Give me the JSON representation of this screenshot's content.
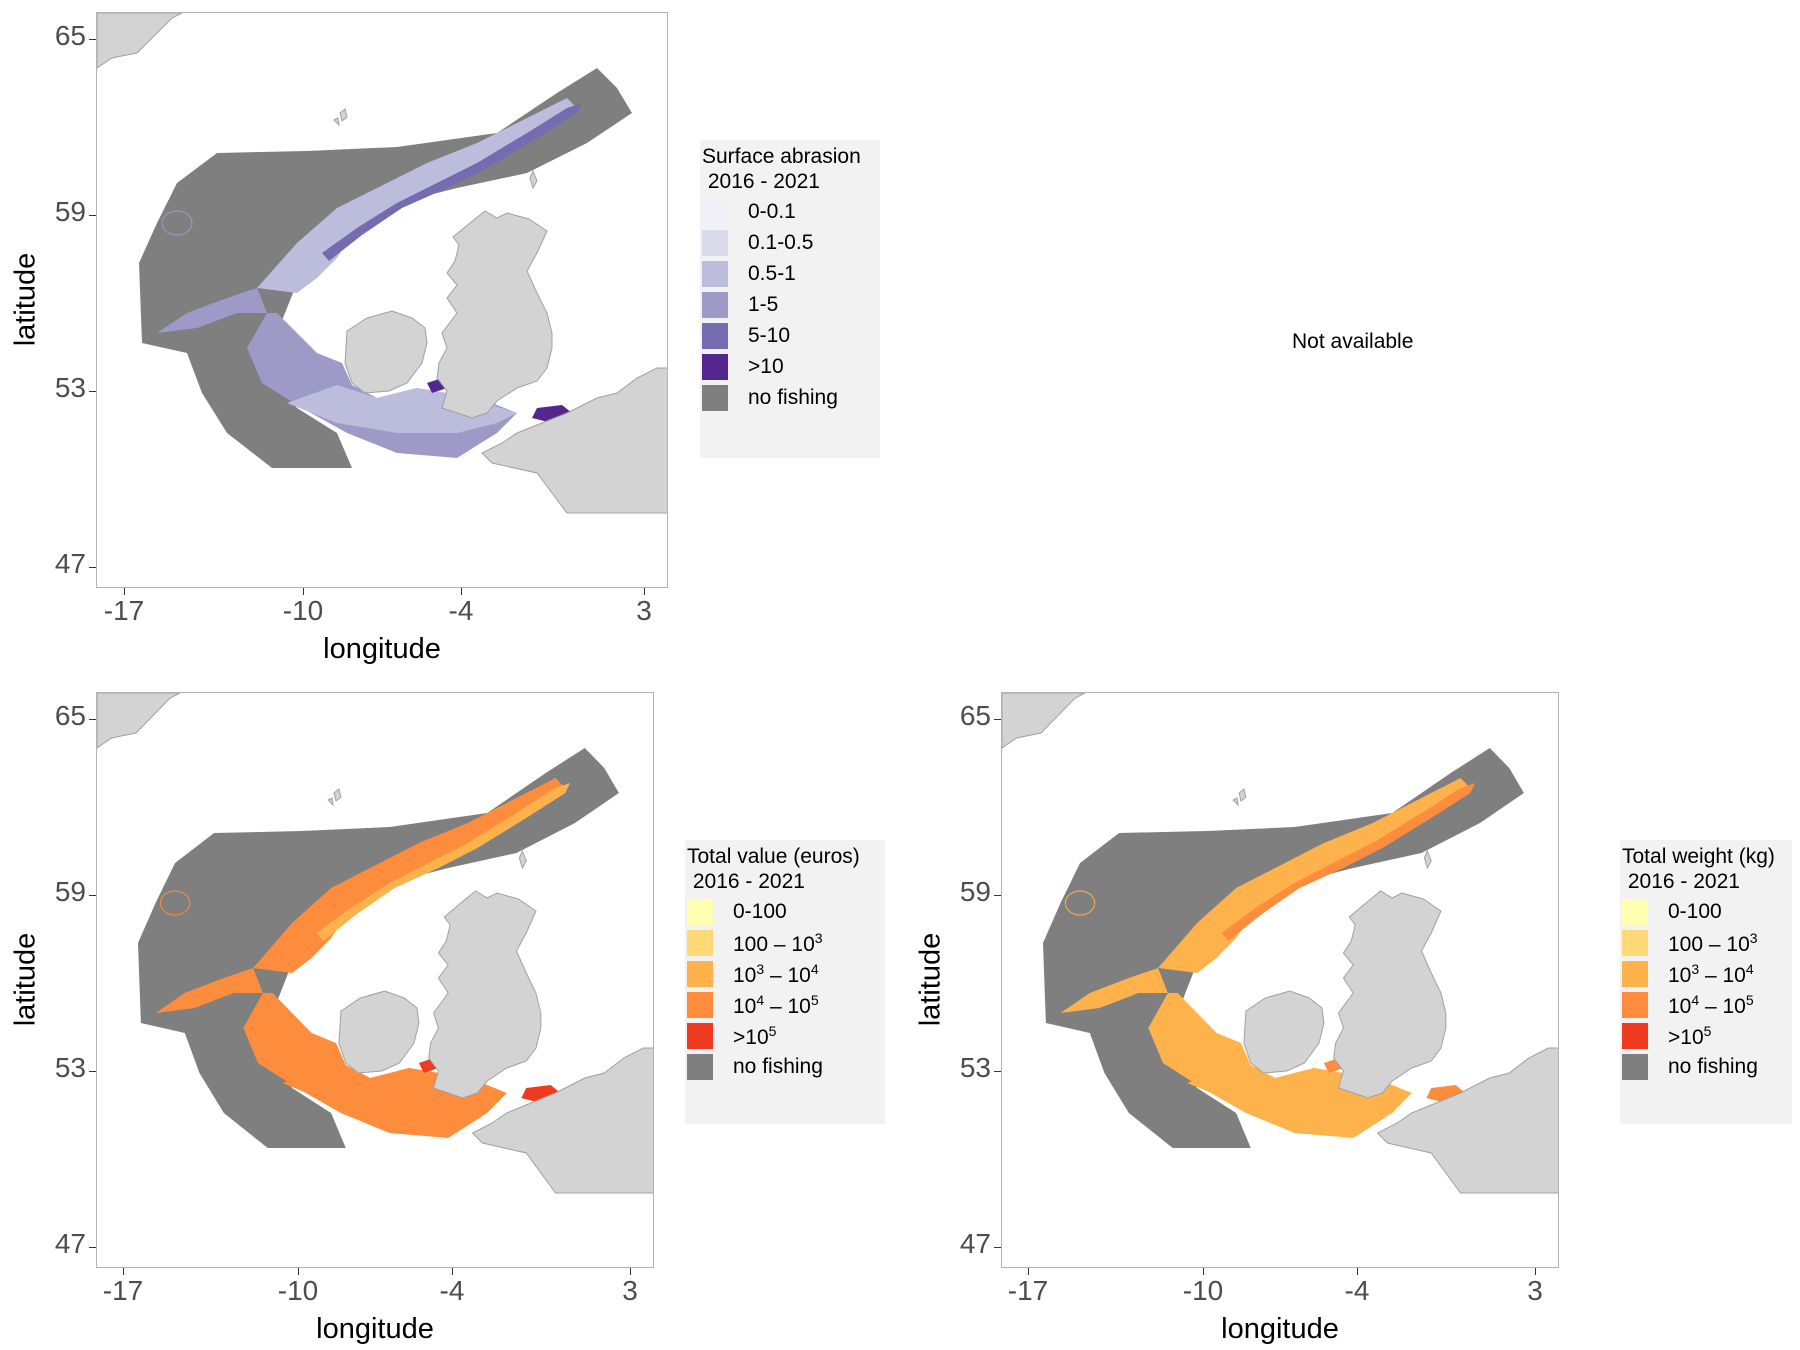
{
  "panels": [
    {
      "id": "abrasion",
      "xlabel": "longitude",
      "ylabel": "latitude",
      "x_ticks": [
        "-17",
        "-10",
        "-4",
        "3"
      ],
      "y_ticks": [
        "65",
        "59",
        "53",
        "47"
      ],
      "legend": {
        "title": "Surface abrasion\n 2016 - 2021",
        "items": [
          {
            "label": "0-0.1",
            "color": "#f2f0f7"
          },
          {
            "label": "0.1-0.5",
            "color": "#dadaeb"
          },
          {
            "label": "0.5-1",
            "color": "#bcbddc"
          },
          {
            "label": "1-5",
            "color": "#9e9ac8"
          },
          {
            "label": "5-10",
            "color": "#756bb1"
          },
          {
            "label": ">10",
            "color": "#54278f"
          },
          {
            "label": "no fishing",
            "color": "#7f7f7f"
          }
        ]
      },
      "palette": "purple"
    },
    {
      "id": "value",
      "xlabel": "longitude",
      "ylabel": "latitude",
      "x_ticks": [
        "-17",
        "-10",
        "-4",
        "3"
      ],
      "y_ticks": [
        "65",
        "59",
        "53",
        "47"
      ],
      "legend": {
        "title": "Total value (euros)\n 2016 - 2021",
        "items": [
          {
            "label": "0-100",
            "color": "#ffffb2"
          },
          {
            "label": "100 – 10^3",
            "color": "#fed976"
          },
          {
            "label": "10^3 – 10^4",
            "color": "#feb24c"
          },
          {
            "label": "10^4 – 10^5",
            "color": "#fd8d3c"
          },
          {
            "label": ">10^5",
            "color": "#f03b20"
          },
          {
            "label": "no fishing",
            "color": "#7f7f7f"
          }
        ]
      },
      "palette": "orange"
    },
    {
      "id": "weight",
      "xlabel": "longitude",
      "ylabel": "latitude",
      "x_ticks": [
        "-17",
        "-10",
        "-4",
        "3"
      ],
      "y_ticks": [
        "65",
        "59",
        "53",
        "47"
      ],
      "legend": {
        "title": "Total weight (kg)\n 2016 - 2021",
        "items": [
          {
            "label": "0-100",
            "color": "#ffffb2"
          },
          {
            "label": "100 – 10^3",
            "color": "#fed976"
          },
          {
            "label": "10^3 – 10^4",
            "color": "#feb24c"
          },
          {
            "label": "10^4 – 10^5",
            "color": "#fd8d3c"
          },
          {
            "label": ">10^5",
            "color": "#f03b20"
          },
          {
            "label": "no fishing",
            "color": "#7f7f7f"
          }
        ]
      },
      "palette": "orange-light"
    }
  ],
  "not_available": {
    "text": "Not available"
  },
  "colors": {
    "land": "#d3d3d3",
    "land_outline": "#a0a0a0",
    "no_fishing": "#7f7f7f"
  }
}
